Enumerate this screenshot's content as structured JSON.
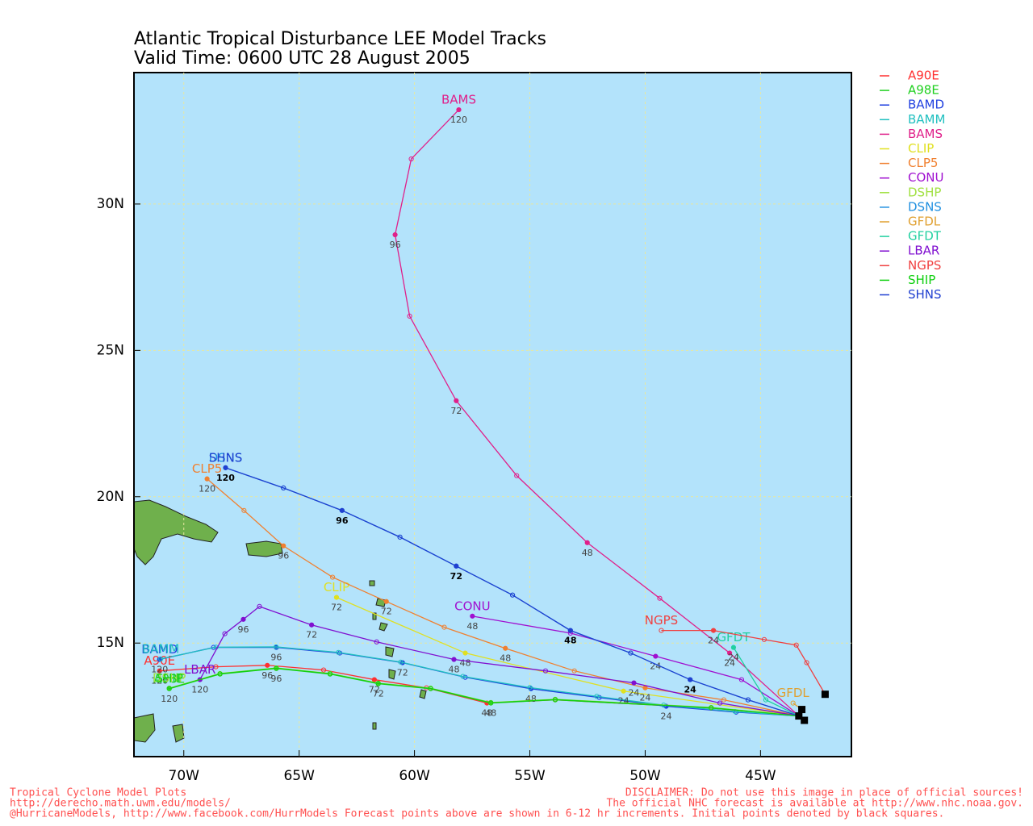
{
  "chart_data": {
    "type": "map",
    "title": "Atlantic Tropical Disturbance LEE Model Tracks",
    "subtitle": "Valid Time: 0600 UTC 28 August 2005",
    "xlim": [
      -72.16,
      -41.06
    ],
    "ylim": [
      11.12,
      34.49
    ],
    "xticks": [
      {
        "value": -70,
        "label": "70W"
      },
      {
        "value": -65,
        "label": "65W"
      },
      {
        "value": -60,
        "label": "60W"
      },
      {
        "value": -55,
        "label": "55W"
      },
      {
        "value": -50,
        "label": "50W"
      },
      {
        "value": -45,
        "label": "45W"
      }
    ],
    "yticks": [
      {
        "value": 15,
        "label": "15N"
      },
      {
        "value": 20,
        "label": "20N"
      },
      {
        "value": 25,
        "label": "25N"
      },
      {
        "value": 30,
        "label": "30N"
      }
    ],
    "grid": true,
    "initial_lon": [
      -43.34,
      -43.21,
      -42.2,
      -43.1
    ],
    "initial_lat": [
      12.51,
      12.73,
      13.25,
      12.36
    ],
    "series": [
      {
        "name": "A90E",
        "color": "#ff3030",
        "lon": [
          -43.34,
          -47.14,
          -53.9,
          -56.86,
          -59.48,
          -61.74,
          -63.94,
          -66.38,
          -68.61,
          -71.05
        ],
        "lat": [
          12.51,
          12.78,
          13.06,
          12.95,
          13.47,
          13.75,
          14.08,
          14.24,
          14.19,
          14.05
        ],
        "hours": [
          null,
          null,
          null,
          48,
          null,
          72,
          null,
          96,
          null,
          120
        ]
      },
      {
        "name": "A98E",
        "color": "#20d020",
        "lon": [
          -43.34,
          -47.14,
          -53.9,
          -56.69,
          -59.3,
          -61.57,
          -63.66,
          -65.99,
          -68.43,
          -70.63
        ],
        "lat": [
          12.51,
          12.78,
          13.06,
          12.95,
          13.44,
          13.61,
          13.94,
          14.13,
          13.94,
          13.44
        ],
        "hours": [
          null,
          null,
          null,
          48,
          null,
          72,
          null,
          96,
          null,
          120
        ]
      },
      {
        "name": "BAMD",
        "color": "#2040e0",
        "lon": [
          -43.34,
          -46.06,
          -49.09,
          -51.99,
          -54.95,
          -57.8,
          -60.52,
          -63.24,
          -65.99,
          -68.71,
          -71.05
        ],
        "lat": [
          12.51,
          12.64,
          12.84,
          13.14,
          13.44,
          13.83,
          14.33,
          14.66,
          14.85,
          14.85,
          14.44
        ],
        "hours": [
          null,
          null,
          24,
          null,
          48,
          null,
          72,
          null,
          96,
          null,
          120
        ]
      },
      {
        "name": "BAMM",
        "color": "#20c0c0",
        "lon": [
          -43.34,
          -46.1,
          -49.2,
          -52.1,
          -55.0,
          -57.9,
          -60.6,
          -63.3,
          -66.0,
          -68.6,
          -71.0
        ],
        "lat": [
          12.51,
          12.66,
          12.88,
          13.18,
          13.48,
          13.86,
          14.35,
          14.68,
          14.87,
          14.86,
          14.46
        ],
        "hours": [
          null,
          null,
          null,
          null,
          null,
          null,
          null,
          null,
          null,
          null,
          null
        ]
      },
      {
        "name": "BAMS",
        "color": "#e0208a",
        "lon": [
          -43.34,
          -46.34,
          -49.37,
          -52.51,
          -55.57,
          -58.19,
          -60.21,
          -60.84,
          -60.14,
          -58.08
        ],
        "lat": [
          12.51,
          14.66,
          16.53,
          18.43,
          20.72,
          23.28,
          26.17,
          28.95,
          31.54,
          33.22
        ],
        "hours": [
          null,
          24,
          null,
          48,
          null,
          72,
          null,
          96,
          null,
          120
        ]
      },
      {
        "name": "CLIP",
        "color": "#e0e020",
        "lon": [
          -43.34,
          -50.94,
          -57.8,
          -63.38
        ],
        "lat": [
          12.51,
          13.36,
          14.66,
          16.56
        ],
        "hours": [
          null,
          24,
          48,
          72
        ]
      },
      {
        "name": "CLP5",
        "color": "#f08030",
        "lon": [
          -43.34,
          -46.59,
          -50.0,
          -53.07,
          -56.06,
          -58.71,
          -61.22,
          -63.55,
          -65.68,
          -67.39,
          -68.99
        ],
        "lat": [
          12.51,
          13.06,
          13.47,
          14.05,
          14.82,
          15.54,
          16.42,
          17.25,
          18.32,
          19.53,
          20.61
        ],
        "hours": [
          null,
          null,
          24,
          null,
          48,
          null,
          72,
          null,
          96,
          null,
          120
        ]
      },
      {
        "name": "CONU",
        "color": "#a010d0",
        "lon": [
          -43.34,
          -45.82,
          -49.55,
          -53.24,
          -57.49
        ],
        "lat": [
          12.51,
          13.75,
          14.55,
          15.34,
          15.92
        ],
        "hours": [
          null,
          null,
          24,
          null,
          48
        ]
      },
      {
        "name": "DSHP",
        "color": "#a0e040",
        "lon": [
          -43.34,
          -47.14,
          -53.9,
          -56.69,
          -59.3,
          -61.57,
          -63.66,
          -65.99,
          -68.43,
          -70.63
        ],
        "lat": [
          12.51,
          12.8,
          13.08,
          12.97,
          13.46,
          13.63,
          13.96,
          14.15,
          13.96,
          13.46
        ],
        "hours": [
          null,
          null,
          null,
          null,
          null,
          null,
          null,
          null,
          null,
          null
        ]
      },
      {
        "name": "DSNS",
        "color": "#2090e0",
        "lon": [
          -43.34,
          -45.54,
          -48.05,
          -50.63,
          -53.24,
          -55.75,
          -58.19,
          -60.63,
          -63.14,
          -65.68,
          -68.19
        ],
        "lat": [
          12.51,
          13.06,
          13.75,
          14.66,
          15.43,
          16.64,
          17.63,
          18.62,
          19.53,
          20.3,
          20.99
        ],
        "hours": [
          null,
          null,
          null,
          null,
          null,
          null,
          null,
          null,
          null,
          null,
          null
        ]
      },
      {
        "name": "GFDL",
        "color": "#e0a030",
        "lon": [
          -43.21,
          -43.59
        ],
        "lat": [
          12.73,
          12.95
        ],
        "hours": [
          null,
          null
        ]
      },
      {
        "name": "GFDT",
        "color": "#20d0a0",
        "lon": [
          -43.34,
          -44.77,
          -46.17
        ],
        "lat": [
          12.51,
          13.06,
          14.85
        ],
        "hours": [
          null,
          null,
          24
        ]
      },
      {
        "name": "LBAR",
        "color": "#8010d0",
        "lon": [
          -43.34,
          -46.76,
          -50.49,
          -54.32,
          -58.29,
          -61.64,
          -64.46,
          -66.72,
          -67.42,
          -68.22,
          -69.3
        ],
        "lat": [
          12.51,
          12.95,
          13.64,
          14.05,
          14.44,
          15.04,
          15.62,
          16.25,
          15.81,
          15.32,
          13.75
        ],
        "hours": [
          null,
          null,
          24,
          null,
          48,
          null,
          72,
          null,
          96,
          null,
          120
        ]
      },
      {
        "name": "NGPS",
        "color": "#f04040",
        "lon": [
          -42.2,
          -43.0,
          -43.45,
          -44.84,
          -47.04,
          -49.3
        ],
        "lat": [
          13.25,
          14.33,
          14.93,
          15.12,
          15.43,
          15.43
        ],
        "hours": [
          null,
          null,
          null,
          null,
          24,
          null
        ]
      },
      {
        "name": "SHIP",
        "color": "#10d010",
        "lon": [
          -43.34,
          -47.14,
          -53.9,
          -56.69,
          -59.3,
          -61.57,
          -63.66,
          -65.99,
          -68.43,
          -70.63
        ],
        "lat": [
          12.51,
          12.79,
          13.07,
          12.96,
          13.45,
          13.62,
          13.95,
          14.14,
          13.95,
          13.45
        ],
        "hours": [
          null,
          null,
          null,
          null,
          null,
          null,
          null,
          null,
          null,
          null
        ]
      },
      {
        "name": "SHNS",
        "color": "#2040d0",
        "lon": [
          -43.34,
          -45.54,
          -48.05,
          -50.63,
          -53.24,
          -55.75,
          -58.19,
          -60.63,
          -63.14,
          -65.68,
          -68.19
        ],
        "lat": [
          12.51,
          13.06,
          13.75,
          14.66,
          15.43,
          16.64,
          17.63,
          18.62,
          19.53,
          20.3,
          20.99
        ],
        "hours": [
          null,
          null,
          24,
          null,
          48,
          null,
          72,
          null,
          96,
          null,
          120
        ]
      }
    ],
    "footer_left": [
      "Tropical Cyclone Model Plots",
      "http://derecho.math.uwm.edu/models/",
      "@HurricaneModels, http://www.facebook.com/HurrModels  Forecast points above are shown in 6-12 hr increments. Initial points denoted by black squares."
    ],
    "footer_right": [
      "DISCLAIMER: Do not use this image in place of official sources!",
      "The official NHC forecast is available at http://www.nhc.noaa.gov."
    ]
  }
}
